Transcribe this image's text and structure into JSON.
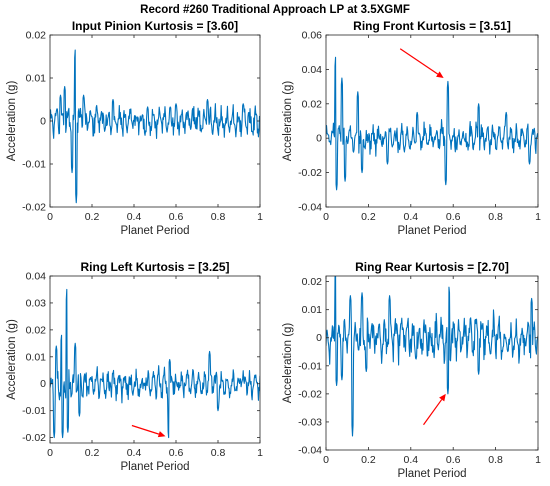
{
  "figure": {
    "title": "Record #260 Traditional Approach LP at 3.5XGMF",
    "series_color": "#0072BD",
    "annotation_color": "#FF0000"
  },
  "chart_data": [
    {
      "type": "line",
      "title": "Input Pinion Kurtosis = [3.60]",
      "xlabel": "Planet Period",
      "ylabel": "Acceleration (g)",
      "xlim": [
        0,
        1
      ],
      "ylim": [
        -0.02,
        0.02
      ],
      "xticks": [
        "0",
        "0.2",
        "0.4",
        "0.6",
        "0.8",
        "1"
      ],
      "yticks": [
        "0.02",
        "0.01",
        "0",
        "-0.01",
        "-0.02"
      ],
      "signal": {
        "points": 400,
        "seed": 11,
        "noise_amplitude": 0.0028,
        "peaks": [
          [
            0.05,
            0.006
          ],
          [
            0.07,
            0.008
          ],
          [
            0.12,
            0.0165
          ],
          [
            0.125,
            -0.019
          ],
          [
            0.105,
            -0.012
          ],
          [
            0.16,
            0.006
          ],
          [
            0.3,
            0.005
          ],
          [
            0.6,
            0.004
          ],
          [
            0.75,
            0.005
          ],
          [
            0.92,
            0.004
          ]
        ]
      },
      "arrow": null
    },
    {
      "type": "line",
      "title": "Ring Front Kurtosis = [3.51]",
      "xlabel": "Planet Period",
      "ylabel": "Acceleration (g)",
      "xlim": [
        0,
        1
      ],
      "ylim": [
        -0.04,
        0.06
      ],
      "xticks": [
        "0",
        "0.2",
        "0.4",
        "0.6",
        "0.8",
        "1"
      ],
      "yticks": [
        "0.06",
        "0.04",
        "0.02",
        "0",
        "-0.02",
        "-0.04"
      ],
      "signal": {
        "points": 400,
        "seed": 23,
        "noise_amplitude": 0.007,
        "peaks": [
          [
            0.045,
            0.047
          ],
          [
            0.05,
            -0.03
          ],
          [
            0.075,
            0.035
          ],
          [
            0.09,
            -0.025
          ],
          [
            0.15,
            0.027
          ],
          [
            0.17,
            -0.02
          ],
          [
            0.29,
            -0.015
          ],
          [
            0.43,
            0.015
          ],
          [
            0.575,
            0.033
          ],
          [
            0.565,
            -0.027
          ],
          [
            0.72,
            0.02
          ],
          [
            0.85,
            0.015
          ],
          [
            0.96,
            -0.015
          ]
        ]
      },
      "arrow": {
        "from": [
          0.35,
          0.052
        ],
        "to": [
          0.555,
          0.035
        ]
      }
    },
    {
      "type": "line",
      "title": "Ring Left Kurtosis = [3.25]",
      "xlabel": "Planet Period",
      "ylabel": "Acceleration (g)",
      "xlim": [
        0,
        1
      ],
      "ylim": [
        -0.022,
        0.04
      ],
      "xticks": [
        "0",
        "0.2",
        "0.4",
        "0.6",
        "0.8",
        "1"
      ],
      "yticks": [
        "0.04",
        "0.03",
        "0.02",
        "0.01",
        "0",
        "-0.01",
        "-0.02"
      ],
      "signal": {
        "points": 400,
        "seed": 37,
        "noise_amplitude": 0.0045,
        "peaks": [
          [
            0.02,
            -0.02
          ],
          [
            0.03,
            0.014
          ],
          [
            0.055,
            0.018
          ],
          [
            0.06,
            -0.02
          ],
          [
            0.08,
            0.035
          ],
          [
            0.085,
            -0.018
          ],
          [
            0.12,
            0.015
          ],
          [
            0.14,
            -0.012
          ],
          [
            0.565,
            -0.02
          ],
          [
            0.57,
            0.009
          ],
          [
            0.76,
            0.012
          ],
          [
            0.8,
            -0.01
          ]
        ]
      },
      "arrow": {
        "from": [
          0.39,
          -0.0155
        ],
        "to": [
          0.55,
          -0.0195
        ]
      }
    },
    {
      "type": "line",
      "title": "Ring Rear Kurtosis = [2.70]",
      "xlabel": "Planet Period",
      "ylabel": "Acceleration (g)",
      "xlim": [
        0,
        1
      ],
      "ylim": [
        -0.04,
        0.022
      ],
      "xticks": [
        "0",
        "0.2",
        "0.4",
        "0.6",
        "0.8",
        "1"
      ],
      "yticks": [
        "0.02",
        "0.01",
        "0",
        "-0.01",
        "-0.02",
        "-0.03",
        "-0.04"
      ],
      "signal": {
        "points": 400,
        "seed": 53,
        "noise_amplitude": 0.0065,
        "peaks": [
          [
            0.045,
            0.024
          ],
          [
            0.05,
            -0.017
          ],
          [
            0.075,
            -0.015
          ],
          [
            0.125,
            -0.035
          ],
          [
            0.115,
            0.015
          ],
          [
            0.17,
            0.016
          ],
          [
            0.19,
            -0.012
          ],
          [
            0.3,
            0.015
          ],
          [
            0.58,
            0.018
          ],
          [
            0.575,
            -0.02
          ],
          [
            0.72,
            -0.013
          ],
          [
            0.97,
            0.014
          ]
        ]
      },
      "arrow": {
        "from": [
          0.46,
          -0.031
        ],
        "to": [
          0.565,
          -0.02
        ]
      }
    }
  ]
}
